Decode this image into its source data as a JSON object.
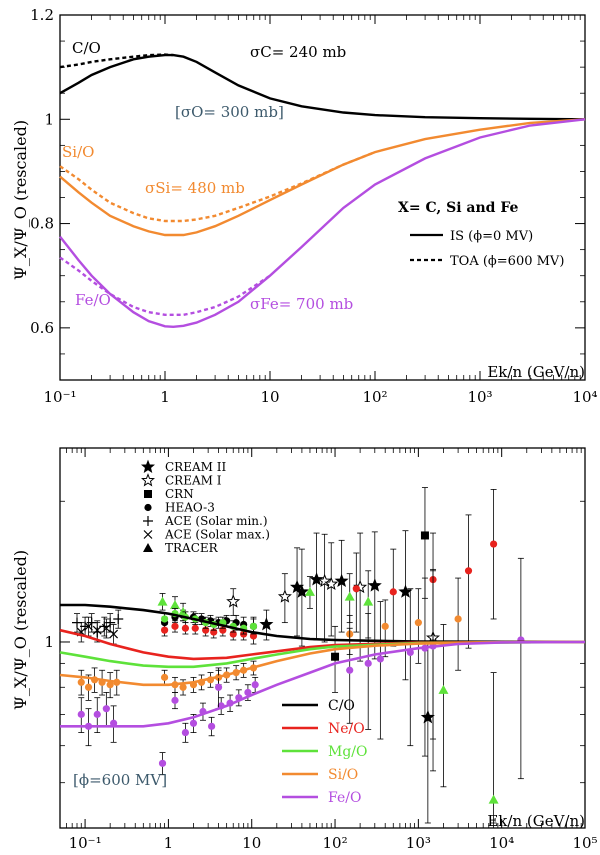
{
  "chart_data": [
    {
      "type": "line",
      "xscale": "log",
      "xlim": [
        0.1,
        10000
      ],
      "ylim": [
        0.5,
        1.2
      ],
      "xlabel": "Ek/n (GeV/n)",
      "ylabel": "Ψ_X/Ψ_O (rescaled)",
      "x_ticks": [
        "10⁻¹",
        "1",
        "10",
        "10²",
        "10³",
        "10⁴"
      ],
      "y_ticks": [
        "0.6",
        "0.8",
        "1",
        "1.2"
      ],
      "legend": {
        "placement": "right",
        "title": "X= C, Si and Fe",
        "entries": [
          {
            "label": "IS (ϕ=0 MV)",
            "style": "solid"
          },
          {
            "label": "TOA (ϕ=600 MV)",
            "style": "dashed"
          }
        ]
      },
      "annotations": {
        "co": "C/O",
        "sio": "Si/O",
        "feo": "Fe/O",
        "sigma_c": "σC= 240 mb",
        "sigma_o": "[σO= 300 mb]",
        "sigma_si": "σSi= 480 mb",
        "sigma_fe": "σFe= 700 mb"
      },
      "colors": {
        "co": "#000000",
        "sio": "#f28a30",
        "feo": "#b44ee0",
        "sigma_o": "#3d5a6c"
      },
      "series": [
        {
          "name": "C/O",
          "style": "solid",
          "color": "#000000",
          "x": [
            0.1,
            0.15,
            0.2,
            0.3,
            0.5,
            0.7,
            1,
            1.2,
            1.5,
            2,
            3,
            5,
            10,
            20,
            50,
            100,
            300,
            1000,
            3000,
            10000
          ],
          "y": [
            1.05,
            1.07,
            1.085,
            1.1,
            1.115,
            1.12,
            1.123,
            1.123,
            1.12,
            1.11,
            1.09,
            1.065,
            1.04,
            1.025,
            1.013,
            1.008,
            1.004,
            1.002,
            1.001,
            1.0
          ]
        },
        {
          "name": "C/O",
          "style": "dashed",
          "color": "#000000",
          "x": [
            0.1,
            0.15,
            0.2,
            0.3,
            0.5,
            0.7,
            1,
            1.2
          ],
          "y": [
            1.1,
            1.105,
            1.11,
            1.115,
            1.12,
            1.123,
            1.124,
            1.123
          ]
        },
        {
          "name": "Si/O",
          "style": "solid",
          "color": "#f28a30",
          "x": [
            0.1,
            0.15,
            0.2,
            0.3,
            0.5,
            0.7,
            1,
            1.5,
            2,
            3,
            5,
            10,
            20,
            50,
            100,
            300,
            1000,
            3000,
            10000
          ],
          "y": [
            0.89,
            0.86,
            0.84,
            0.815,
            0.795,
            0.785,
            0.778,
            0.778,
            0.783,
            0.795,
            0.815,
            0.845,
            0.875,
            0.913,
            0.937,
            0.962,
            0.98,
            0.993,
            1.0
          ]
        },
        {
          "name": "Si/O",
          "style": "dashed",
          "color": "#f28a30",
          "x": [
            0.1,
            0.15,
            0.2,
            0.3,
            0.5,
            0.7,
            1,
            1.5,
            2,
            3,
            5,
            10,
            20,
            50,
            100
          ],
          "y": [
            0.91,
            0.885,
            0.865,
            0.84,
            0.82,
            0.81,
            0.805,
            0.805,
            0.808,
            0.815,
            0.83,
            0.852,
            0.877,
            0.913,
            0.937
          ]
        },
        {
          "name": "Fe/O",
          "style": "solid",
          "color": "#b44ee0",
          "x": [
            0.1,
            0.15,
            0.2,
            0.3,
            0.5,
            0.7,
            1,
            1.2,
            1.5,
            2,
            3,
            5,
            10,
            20,
            50,
            100,
            300,
            1000,
            3000,
            10000
          ],
          "y": [
            0.775,
            0.73,
            0.7,
            0.665,
            0.63,
            0.613,
            0.603,
            0.602,
            0.604,
            0.61,
            0.625,
            0.65,
            0.7,
            0.755,
            0.83,
            0.875,
            0.925,
            0.965,
            0.988,
            1.0
          ]
        },
        {
          "name": "Fe/O",
          "style": "dashed",
          "color": "#b44ee0",
          "x": [
            0.1,
            0.15,
            0.2,
            0.3,
            0.5,
            0.7,
            1,
            1.5,
            2,
            3,
            5,
            10
          ],
          "y": [
            0.735,
            0.71,
            0.69,
            0.665,
            0.64,
            0.63,
            0.625,
            0.625,
            0.63,
            0.64,
            0.66,
            0.7
          ]
        }
      ]
    },
    {
      "type": "line",
      "xscale": "log",
      "yscale": "log",
      "xlim": [
        0.05,
        100000
      ],
      "ylim": [
        0.4,
        2.6
      ],
      "xlabel": "Ek/n (GeV/n)",
      "ylabel": "Ψ_X/Ψ_O (rescaled)",
      "x_ticks": [
        "10⁻¹",
        "1",
        "10",
        "10²",
        "10³",
        "10⁴",
        "10⁵"
      ],
      "y_ticks": [
        "1"
      ],
      "annotation": "[ϕ=600 MV]",
      "legend_datasets": {
        "placement": "top-left",
        "entries": [
          {
            "label": "CREAM II",
            "marker": "star-filled"
          },
          {
            "label": "CREAM I",
            "marker": "star-open"
          },
          {
            "label": "CRN",
            "marker": "square"
          },
          {
            "label": "HEAO-3",
            "marker": "circle"
          },
          {
            "label": "ACE (Solar min.)",
            "marker": "plus"
          },
          {
            "label": "ACE (Solar max.)",
            "marker": "cross"
          },
          {
            "label": "TRACER",
            "marker": "triangle"
          }
        ]
      },
      "legend_ratios": {
        "placement": "bottom-center",
        "entries": [
          {
            "label": "C/O",
            "color": "#000000"
          },
          {
            "label": "Ne/O",
            "color": "#e8231e"
          },
          {
            "label": "Mg/O",
            "color": "#5ee23a"
          },
          {
            "label": "Si/O",
            "color": "#f28a30"
          },
          {
            "label": "Fe/O",
            "color": "#b44ee0"
          }
        ]
      },
      "series": [
        {
          "name": "C/O",
          "color": "#000000",
          "x": [
            0.05,
            0.1,
            0.2,
            0.5,
            1,
            2,
            5,
            10,
            20,
            50,
            100,
            1000,
            100000
          ],
          "y": [
            1.2,
            1.2,
            1.19,
            1.17,
            1.15,
            1.12,
            1.08,
            1.05,
            1.03,
            1.015,
            1.01,
            1.002,
            1.0
          ]
        },
        {
          "name": "Ne/O",
          "color": "#e8231e",
          "x": [
            0.05,
            0.1,
            0.2,
            0.5,
            1,
            2,
            5,
            10,
            20,
            50,
            100,
            1000,
            100000
          ],
          "y": [
            1.06,
            1.03,
            0.99,
            0.95,
            0.93,
            0.92,
            0.925,
            0.94,
            0.955,
            0.975,
            0.985,
            0.997,
            1.0
          ]
        },
        {
          "name": "Mg/O",
          "color": "#5ee23a",
          "x": [
            0.05,
            0.1,
            0.2,
            0.5,
            1,
            2,
            5,
            10,
            20,
            50,
            100,
            1000,
            100000
          ],
          "y": [
            0.95,
            0.93,
            0.91,
            0.89,
            0.885,
            0.885,
            0.9,
            0.92,
            0.94,
            0.965,
            0.978,
            0.995,
            1.0
          ]
        },
        {
          "name": "Si/O",
          "color": "#f28a30",
          "x": [
            0.05,
            0.1,
            0.2,
            0.5,
            1,
            2,
            5,
            10,
            20,
            50,
            100,
            300,
            1000,
            10000,
            100000
          ],
          "y": [
            0.85,
            0.84,
            0.825,
            0.81,
            0.81,
            0.82,
            0.85,
            0.88,
            0.91,
            0.945,
            0.965,
            0.982,
            0.992,
            0.999,
            1.0
          ]
        },
        {
          "name": "Fe/O",
          "color": "#b44ee0",
          "x": [
            0.05,
            0.1,
            0.2,
            0.5,
            1,
            2,
            5,
            10,
            20,
            50,
            100,
            300,
            1000,
            3000,
            10000,
            100000
          ],
          "y": [
            0.66,
            0.66,
            0.66,
            0.66,
            0.67,
            0.69,
            0.73,
            0.77,
            0.81,
            0.86,
            0.9,
            0.94,
            0.97,
            0.99,
            0.998,
            1.0
          ]
        }
      ],
      "data_points": {
        "CREAM II": {
          "marker": "star-filled",
          "color": "#000000",
          "x": [
            15,
            35,
            40,
            60,
            120,
            300,
            700,
            1300
          ],
          "y": [
            1.09,
            1.31,
            1.28,
            1.36,
            1.35,
            1.32,
            1.28,
            0.69
          ],
          "err": [
            0.08,
            0.28,
            0.3,
            0.35,
            0.3,
            0.4,
            0.45,
            0.3
          ]
        },
        "CREAM I": {
          "marker": "star-open",
          "color": "#000000",
          "x": [
            6,
            25,
            75,
            90,
            200,
            1500
          ],
          "y": [
            1.22,
            1.25,
            1.35,
            1.33,
            1.31,
            1.02
          ],
          "err": [
            0.08,
            0.15,
            0.35,
            0.3,
            0.4,
            0.4
          ]
        },
        "CRN": {
          "marker": "square",
          "color": "#000000",
          "x": [
            100,
            1200
          ],
          "y": [
            0.93,
            1.69
          ],
          "err": [
            0.15,
            0.45
          ]
        },
        "HEAO-3": {
          "marker": "circle",
          "color": "#000000",
          "x": [
            0.9,
            1.2,
            1.5,
            2.0,
            2.5,
            3.2,
            4.0,
            5.0,
            6.5,
            8.0,
            10.5
          ],
          "y": [
            1.1,
            1.13,
            1.14,
            1.13,
            1.12,
            1.11,
            1.1,
            1.11,
            1.1,
            1.09,
            1.08
          ],
          "err": [
            0.03,
            0.03,
            0.03,
            0.03,
            0.03,
            0.03,
            0.03,
            0.03,
            0.04,
            0.04,
            0.05
          ]
        },
        "ACE (Solar min.)": {
          "marker": "plus",
          "color": "#000000",
          "x": [
            0.08,
            0.1,
            0.12,
            0.14,
            0.17,
            0.2,
            0.25
          ],
          "y": [
            1.1,
            1.08,
            1.1,
            1.05,
            1.08,
            1.1,
            1.12
          ],
          "err": [
            0.05,
            0.05,
            0.05,
            0.05,
            0.05,
            0.05,
            0.05
          ]
        },
        "ACE (Solar max.)": {
          "marker": "cross",
          "color": "#000000",
          "x": [
            0.09,
            0.11,
            0.14,
            0.18,
            0.22
          ],
          "y": [
            1.05,
            1.08,
            1.06,
            1.07,
            1.04
          ],
          "err": [
            0.05,
            0.05,
            0.05,
            0.05,
            0.05
          ]
        },
        "TRACER": {
          "marker": "triangle",
          "color": "#5ee23a",
          "x": [
            0.85,
            1.2,
            1.5,
            50,
            150,
            250,
            2000,
            8000
          ],
          "y": [
            1.22,
            1.2,
            1.16,
            1.28,
            1.25,
            1.22,
            0.79,
            0.46
          ],
          "err": [
            0.05,
            0.05,
            0.05,
            0.1,
            0.15,
            0.2,
            0.3,
            0.4
          ]
        },
        "Ne/O points": {
          "marker": "circle",
          "color": "#e8231e",
          "x": [
            0.9,
            1.2,
            1.6,
            2.1,
            2.8,
            3.5,
            4.5,
            6.0,
            8.0,
            10.5,
            180,
            500,
            1500,
            4000,
            8000
          ],
          "y": [
            1.06,
            1.08,
            1.07,
            1.07,
            1.06,
            1.05,
            1.06,
            1.04,
            1.04,
            1.03,
            1.3,
            1.28,
            1.36,
            1.42,
            1.62
          ],
          "err": [
            0.03,
            0.03,
            0.03,
            0.03,
            0.03,
            0.03,
            0.03,
            0.03,
            0.03,
            0.04,
            0.25,
            0.3,
            0.35,
            0.45,
            0.5
          ]
        },
        "Mg/O points": {
          "marker": "circle",
          "color": "#5ee23a",
          "x": [
            0.9,
            1.2,
            1.6,
            2.1,
            2.8,
            3.5,
            4.5,
            6.0,
            8.0,
            10.5
          ],
          "y": [
            1.12,
            1.15,
            1.13,
            1.12,
            1.1,
            1.09,
            1.1,
            1.08,
            1.07,
            1.08
          ],
          "err": [
            0.03,
            0.03,
            0.03,
            0.03,
            0.03,
            0.03,
            0.03,
            0.03,
            0.03,
            0.04
          ]
        },
        "Si/O points": {
          "marker": "circle",
          "color": "#f28a30",
          "x": [
            0.09,
            0.11,
            0.13,
            0.16,
            0.2,
            0.24,
            0.9,
            1.2,
            1.5,
            2.0,
            2.5,
            3.2,
            4.0,
            5.0,
            6.5,
            8.0,
            10.5,
            150,
            400,
            1000,
            3000
          ],
          "y": [
            0.82,
            0.8,
            0.83,
            0.82,
            0.81,
            0.82,
            0.84,
            0.81,
            0.8,
            0.81,
            0.82,
            0.83,
            0.84,
            0.85,
            0.86,
            0.87,
            0.88,
            1.04,
            1.08,
            1.1,
            1.12
          ],
          "err": [
            0.05,
            0.05,
            0.05,
            0.05,
            0.05,
            0.05,
            0.03,
            0.03,
            0.03,
            0.03,
            0.03,
            0.03,
            0.03,
            0.03,
            0.03,
            0.03,
            0.03,
            0.1,
            0.15,
            0.2,
            0.25
          ]
        },
        "Fe/O points": {
          "marker": "circle",
          "color": "#b44ee0",
          "x": [
            0.09,
            0.11,
            0.14,
            0.18,
            0.22,
            0.85,
            1.2,
            1.6,
            2.0,
            2.6,
            3.3,
            4.3,
            5.5,
            7.0,
            9.0,
            11.0,
            4,
            150,
            250,
            350,
            800,
            1200,
            1500,
            17000
          ],
          "y": [
            0.7,
            0.66,
            0.7,
            0.72,
            0.67,
            0.55,
            0.75,
            0.64,
            0.67,
            0.71,
            0.66,
            0.73,
            0.74,
            0.76,
            0.78,
            0.81,
            0.8,
            0.87,
            0.9,
            0.92,
            0.95,
            0.97,
            0.98,
            1.01
          ],
          "err": [
            0.06,
            0.06,
            0.06,
            0.06,
            0.06,
            0.03,
            0.03,
            0.03,
            0.03,
            0.03,
            0.03,
            0.03,
            0.03,
            0.03,
            0.03,
            0.03,
            0.08,
            0.2,
            0.25,
            0.3,
            0.35,
            0.4,
            0.45,
            0.5
          ]
        }
      }
    }
  ]
}
